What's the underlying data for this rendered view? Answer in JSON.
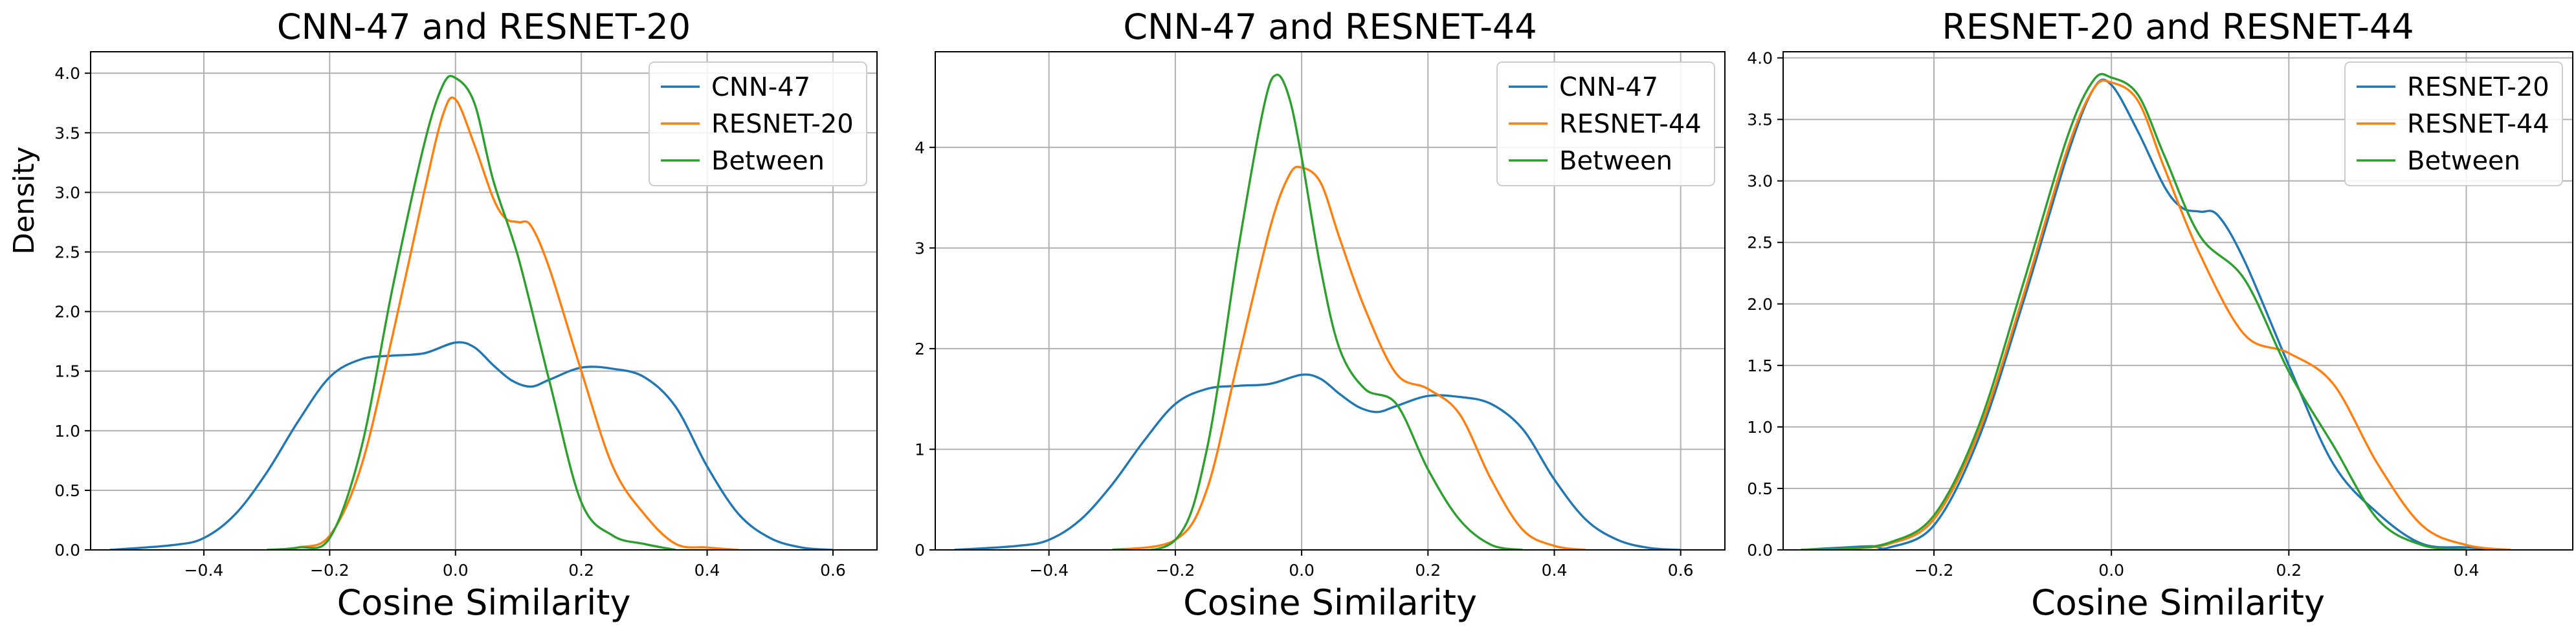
{
  "chart_data": [
    {
      "type": "line",
      "title": "CNN-47 and RESNET-20",
      "xlabel": "Cosine Similarity",
      "ylabel": "Density",
      "xlim": [
        -0.58,
        0.67
      ],
      "ylim": [
        0,
        4.18
      ],
      "xticks": [
        -0.4,
        -0.2,
        0.0,
        0.2,
        0.4,
        0.6
      ],
      "xtick_labels": [
        "−0.4",
        "−0.2",
        "0.0",
        "0.2",
        "0.4",
        "0.6"
      ],
      "yticks": [
        0,
        0.5,
        1.0,
        1.5,
        2.0,
        2.5,
        3.0,
        3.5,
        4.0
      ],
      "ytick_labels": [
        "0.0",
        "0.5",
        "1.0",
        "1.5",
        "2.0",
        "2.5",
        "3.0",
        "3.5",
        "4.0"
      ],
      "grid": true,
      "legend_position": "top-right",
      "series": [
        {
          "name": "CNN-47",
          "color": "#1f77b4",
          "x": [
            -0.55,
            -0.45,
            -0.4,
            -0.35,
            -0.3,
            -0.25,
            -0.2,
            -0.15,
            -0.1,
            -0.05,
            0.0,
            0.03,
            0.06,
            0.09,
            0.12,
            0.15,
            0.2,
            0.25,
            0.3,
            0.35,
            0.4,
            0.45,
            0.5,
            0.55,
            0.6
          ],
          "y": [
            0.0,
            0.04,
            0.1,
            0.3,
            0.65,
            1.08,
            1.45,
            1.6,
            1.63,
            1.65,
            1.74,
            1.7,
            1.55,
            1.42,
            1.37,
            1.43,
            1.53,
            1.52,
            1.45,
            1.2,
            0.7,
            0.3,
            0.1,
            0.02,
            0.0
          ]
        },
        {
          "name": "RESNET-20",
          "color": "#ff7f0e",
          "x": [
            -0.3,
            -0.25,
            -0.2,
            -0.15,
            -0.1,
            -0.05,
            -0.02,
            0.0,
            0.03,
            0.06,
            0.08,
            0.1,
            0.12,
            0.15,
            0.2,
            0.25,
            0.3,
            0.35,
            0.4,
            0.45
          ],
          "y": [
            0.0,
            0.02,
            0.12,
            0.7,
            1.8,
            3.0,
            3.65,
            3.78,
            3.4,
            2.95,
            2.78,
            2.75,
            2.72,
            2.35,
            1.5,
            0.7,
            0.3,
            0.05,
            0.02,
            0.0
          ]
        },
        {
          "name": "Between",
          "color": "#2ca02c",
          "x": [
            -0.3,
            -0.25,
            -0.2,
            -0.15,
            -0.1,
            -0.05,
            -0.02,
            0.0,
            0.03,
            0.06,
            0.1,
            0.15,
            0.2,
            0.25,
            0.3,
            0.35
          ],
          "y": [
            0.0,
            0.02,
            0.1,
            0.85,
            2.2,
            3.4,
            3.9,
            3.96,
            3.75,
            3.1,
            2.45,
            1.4,
            0.4,
            0.12,
            0.05,
            0.0
          ]
        }
      ]
    },
    {
      "type": "line",
      "title": "CNN-47 and RESNET-44",
      "xlabel": "Cosine Similarity",
      "ylabel": "",
      "xlim": [
        -0.58,
        0.67
      ],
      "ylim": [
        0,
        4.95
      ],
      "xticks": [
        -0.4,
        -0.2,
        0.0,
        0.2,
        0.4,
        0.6
      ],
      "xtick_labels": [
        "−0.4",
        "−0.2",
        "0.0",
        "0.2",
        "0.4",
        "0.6"
      ],
      "yticks": [
        0,
        1,
        2,
        3,
        4
      ],
      "ytick_labels": [
        "0",
        "1",
        "2",
        "3",
        "4"
      ],
      "grid": true,
      "legend_position": "top-right",
      "series": [
        {
          "name": "CNN-47",
          "color": "#1f77b4",
          "x": [
            -0.55,
            -0.45,
            -0.4,
            -0.35,
            -0.3,
            -0.25,
            -0.2,
            -0.15,
            -0.1,
            -0.05,
            0.0,
            0.03,
            0.06,
            0.09,
            0.12,
            0.15,
            0.2,
            0.25,
            0.3,
            0.35,
            0.4,
            0.45,
            0.5,
            0.55,
            0.6
          ],
          "y": [
            0.0,
            0.04,
            0.1,
            0.3,
            0.65,
            1.08,
            1.45,
            1.6,
            1.63,
            1.65,
            1.74,
            1.7,
            1.55,
            1.42,
            1.37,
            1.43,
            1.53,
            1.52,
            1.45,
            1.2,
            0.7,
            0.3,
            0.1,
            0.02,
            0.0
          ]
        },
        {
          "name": "RESNET-44",
          "color": "#ff7f0e",
          "x": [
            -0.3,
            -0.2,
            -0.15,
            -0.1,
            -0.05,
            -0.02,
            0.0,
            0.03,
            0.06,
            0.1,
            0.15,
            0.2,
            0.25,
            0.3,
            0.35,
            0.4,
            0.45
          ],
          "y": [
            0.0,
            0.1,
            0.6,
            1.9,
            3.2,
            3.72,
            3.8,
            3.65,
            3.1,
            2.4,
            1.75,
            1.6,
            1.35,
            0.7,
            0.2,
            0.04,
            0.0
          ]
        },
        {
          "name": "Between",
          "color": "#2ca02c",
          "x": [
            -0.3,
            -0.2,
            -0.15,
            -0.1,
            -0.06,
            -0.04,
            -0.02,
            0.0,
            0.03,
            0.06,
            0.1,
            0.15,
            0.2,
            0.25,
            0.3,
            0.35
          ],
          "y": [
            0.0,
            0.1,
            1.0,
            3.0,
            4.4,
            4.72,
            4.5,
            3.9,
            2.8,
            2.0,
            1.6,
            1.45,
            0.8,
            0.3,
            0.05,
            0.0
          ]
        }
      ]
    },
    {
      "type": "line",
      "title": "RESNET-20 and RESNET-44",
      "xlabel": "Cosine Similarity",
      "ylabel": "",
      "xlim": [
        -0.37,
        0.52
      ],
      "ylim": [
        0,
        4.05
      ],
      "xticks": [
        -0.2,
        0.0,
        0.2,
        0.4
      ],
      "xtick_labels": [
        "−0.2",
        "0.0",
        "0.2",
        "0.4"
      ],
      "yticks": [
        0,
        0.5,
        1.0,
        1.5,
        2.0,
        2.5,
        3.0,
        3.5,
        4.0
      ],
      "ytick_labels": [
        "0.0",
        "0.5",
        "1.0",
        "1.5",
        "2.0",
        "2.5",
        "3.0",
        "3.5",
        "4.0"
      ],
      "grid": true,
      "legend_position": "top-right",
      "series": [
        {
          "name": "RESNET-20",
          "color": "#1f77b4",
          "x": [
            -0.35,
            -0.3,
            -0.27,
            -0.25,
            -0.2,
            -0.15,
            -0.1,
            -0.05,
            -0.02,
            0.0,
            0.03,
            0.06,
            0.08,
            0.1,
            0.12,
            0.15,
            0.2,
            0.25,
            0.3,
            0.35,
            0.4,
            0.45
          ],
          "y": [
            0.0,
            0.02,
            0.03,
            0.02,
            0.2,
            0.9,
            2.0,
            3.2,
            3.75,
            3.78,
            3.4,
            2.95,
            2.78,
            2.75,
            2.72,
            2.35,
            1.5,
            0.7,
            0.3,
            0.05,
            0.02,
            0.0
          ]
        },
        {
          "name": "RESNET-44",
          "color": "#ff7f0e",
          "x": [
            -0.35,
            -0.3,
            -0.25,
            -0.2,
            -0.15,
            -0.1,
            -0.05,
            -0.02,
            0.0,
            0.03,
            0.06,
            0.1,
            0.15,
            0.2,
            0.25,
            0.3,
            0.35,
            0.4,
            0.45
          ],
          "y": [
            0.0,
            0.01,
            0.05,
            0.25,
            0.95,
            2.05,
            3.25,
            3.75,
            3.8,
            3.65,
            3.1,
            2.4,
            1.75,
            1.6,
            1.35,
            0.7,
            0.2,
            0.04,
            0.0
          ]
        },
        {
          "name": "Between",
          "color": "#2ca02c",
          "x": [
            -0.35,
            -0.3,
            -0.25,
            -0.2,
            -0.15,
            -0.1,
            -0.05,
            -0.02,
            0.0,
            0.03,
            0.06,
            0.1,
            0.15,
            0.2,
            0.25,
            0.3,
            0.35,
            0.4
          ],
          "y": [
            0.0,
            0.01,
            0.06,
            0.28,
            1.0,
            2.15,
            3.35,
            3.82,
            3.84,
            3.7,
            3.2,
            2.55,
            2.2,
            1.45,
            0.85,
            0.25,
            0.04,
            0.0
          ]
        }
      ]
    }
  ]
}
